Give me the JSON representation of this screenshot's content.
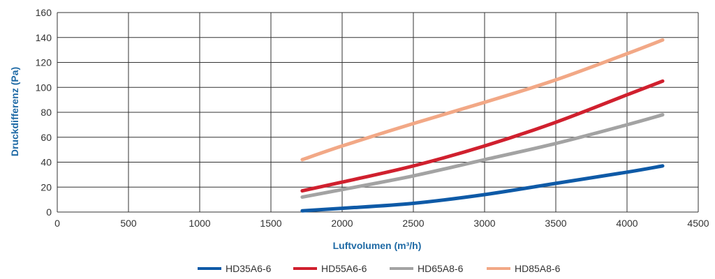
{
  "chart_data": {
    "type": "line",
    "xlabel": "Luftvolumen (m³/h)",
    "ylabel": "Druckdifferenz (Pa)",
    "xlim": [
      0,
      4500
    ],
    "ylim": [
      0,
      160
    ],
    "x_ticks": [
      0,
      500,
      1000,
      1500,
      2000,
      2500,
      3000,
      3500,
      4000,
      4500
    ],
    "y_ticks": [
      0,
      20,
      40,
      60,
      80,
      100,
      120,
      140,
      160
    ],
    "grid": true,
    "legend_position": "bottom",
    "series": [
      {
        "name": "HD35A6-6",
        "color": "#0e5aa7",
        "x": [
          1720,
          2000,
          2500,
          3000,
          3500,
          4000,
          4250
        ],
        "y": [
          1,
          3,
          7,
          14,
          23,
          32,
          37
        ]
      },
      {
        "name": "HD55A6-6",
        "color": "#d0202e",
        "x": [
          1720,
          2000,
          2500,
          3000,
          3500,
          4000,
          4250
        ],
        "y": [
          17,
          24,
          37,
          53,
          72,
          94,
          105
        ]
      },
      {
        "name": "HD65A8-6",
        "color": "#a3a3a3",
        "x": [
          1720,
          2000,
          2500,
          3000,
          3500,
          4000,
          4250
        ],
        "y": [
          12,
          18,
          29,
          42,
          55,
          70,
          78
        ]
      },
      {
        "name": "HD85A8-6",
        "color": "#f2a886",
        "x": [
          1720,
          2000,
          2500,
          3000,
          3500,
          4000,
          4250
        ],
        "y": [
          42,
          53,
          71,
          88,
          106,
          127,
          138
        ]
      }
    ]
  }
}
